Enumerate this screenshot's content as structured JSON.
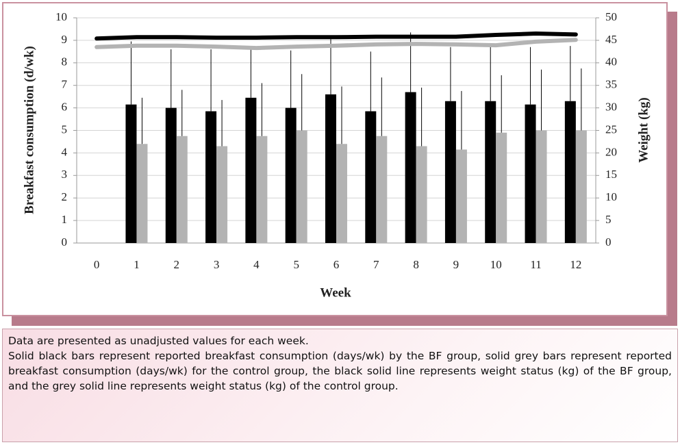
{
  "chart_data": {
    "type": "bar",
    "xlabel": "Week",
    "ylabel": "Breakfast consumption (d/wk)",
    "y2label": "Weight (kg)",
    "categories": [
      "0",
      "1",
      "2",
      "3",
      "4",
      "5",
      "6",
      "7",
      "8",
      "9",
      "10",
      "11",
      "12"
    ],
    "ylim": [
      0,
      10
    ],
    "yticks": [
      0,
      1,
      2,
      3,
      4,
      5,
      6,
      7,
      8,
      9,
      10
    ],
    "y2lim": [
      0,
      50
    ],
    "y2ticks": [
      0,
      5,
      10,
      15,
      20,
      25,
      30,
      35,
      40,
      45,
      50
    ],
    "grid": true,
    "series": [
      {
        "type": "bar",
        "color": "#000000",
        "values": [
          null,
          6.15,
          6.0,
          5.85,
          6.45,
          6.0,
          6.6,
          5.85,
          6.7,
          6.3,
          6.3,
          6.15,
          6.3
        ],
        "errors": [
          null,
          2.8,
          2.6,
          2.75,
          2.3,
          2.55,
          2.45,
          2.65,
          2.65,
          2.4,
          2.4,
          2.55,
          2.45
        ]
      },
      {
        "type": "bar",
        "color": "#b3b3b3",
        "values": [
          null,
          4.4,
          4.75,
          4.3,
          4.75,
          5.0,
          4.4,
          4.75,
          4.3,
          4.15,
          4.9,
          5.0,
          5.0
        ],
        "errors": [
          null,
          2.05,
          2.05,
          2.05,
          2.35,
          2.5,
          2.55,
          2.6,
          2.6,
          2.6,
          2.55,
          2.7,
          2.75
        ]
      },
      {
        "type": "line",
        "axis": "y2",
        "color": "#000000",
        "values": [
          45.4,
          45.7,
          45.7,
          45.6,
          45.6,
          45.7,
          45.7,
          45.8,
          45.8,
          45.8,
          46.2,
          46.5,
          46.3
        ]
      },
      {
        "type": "line",
        "axis": "y2",
        "color": "#b3b3b3",
        "values": [
          43.5,
          43.8,
          43.8,
          43.6,
          43.3,
          43.6,
          43.8,
          44.1,
          44.2,
          44.1,
          43.9,
          44.7,
          45.1
        ]
      }
    ]
  },
  "caption": [
    "Data are presented as unadjusted values for each week.",
    "Solid black bars represent reported breakfast consumption (days/wk) by the BF group, solid grey bars represent reported breakfast consumption (days/wk) for the control group, the black solid line represents weight status (kg) of the BF group, and the grey solid line represents weight status (kg) of the control group."
  ]
}
